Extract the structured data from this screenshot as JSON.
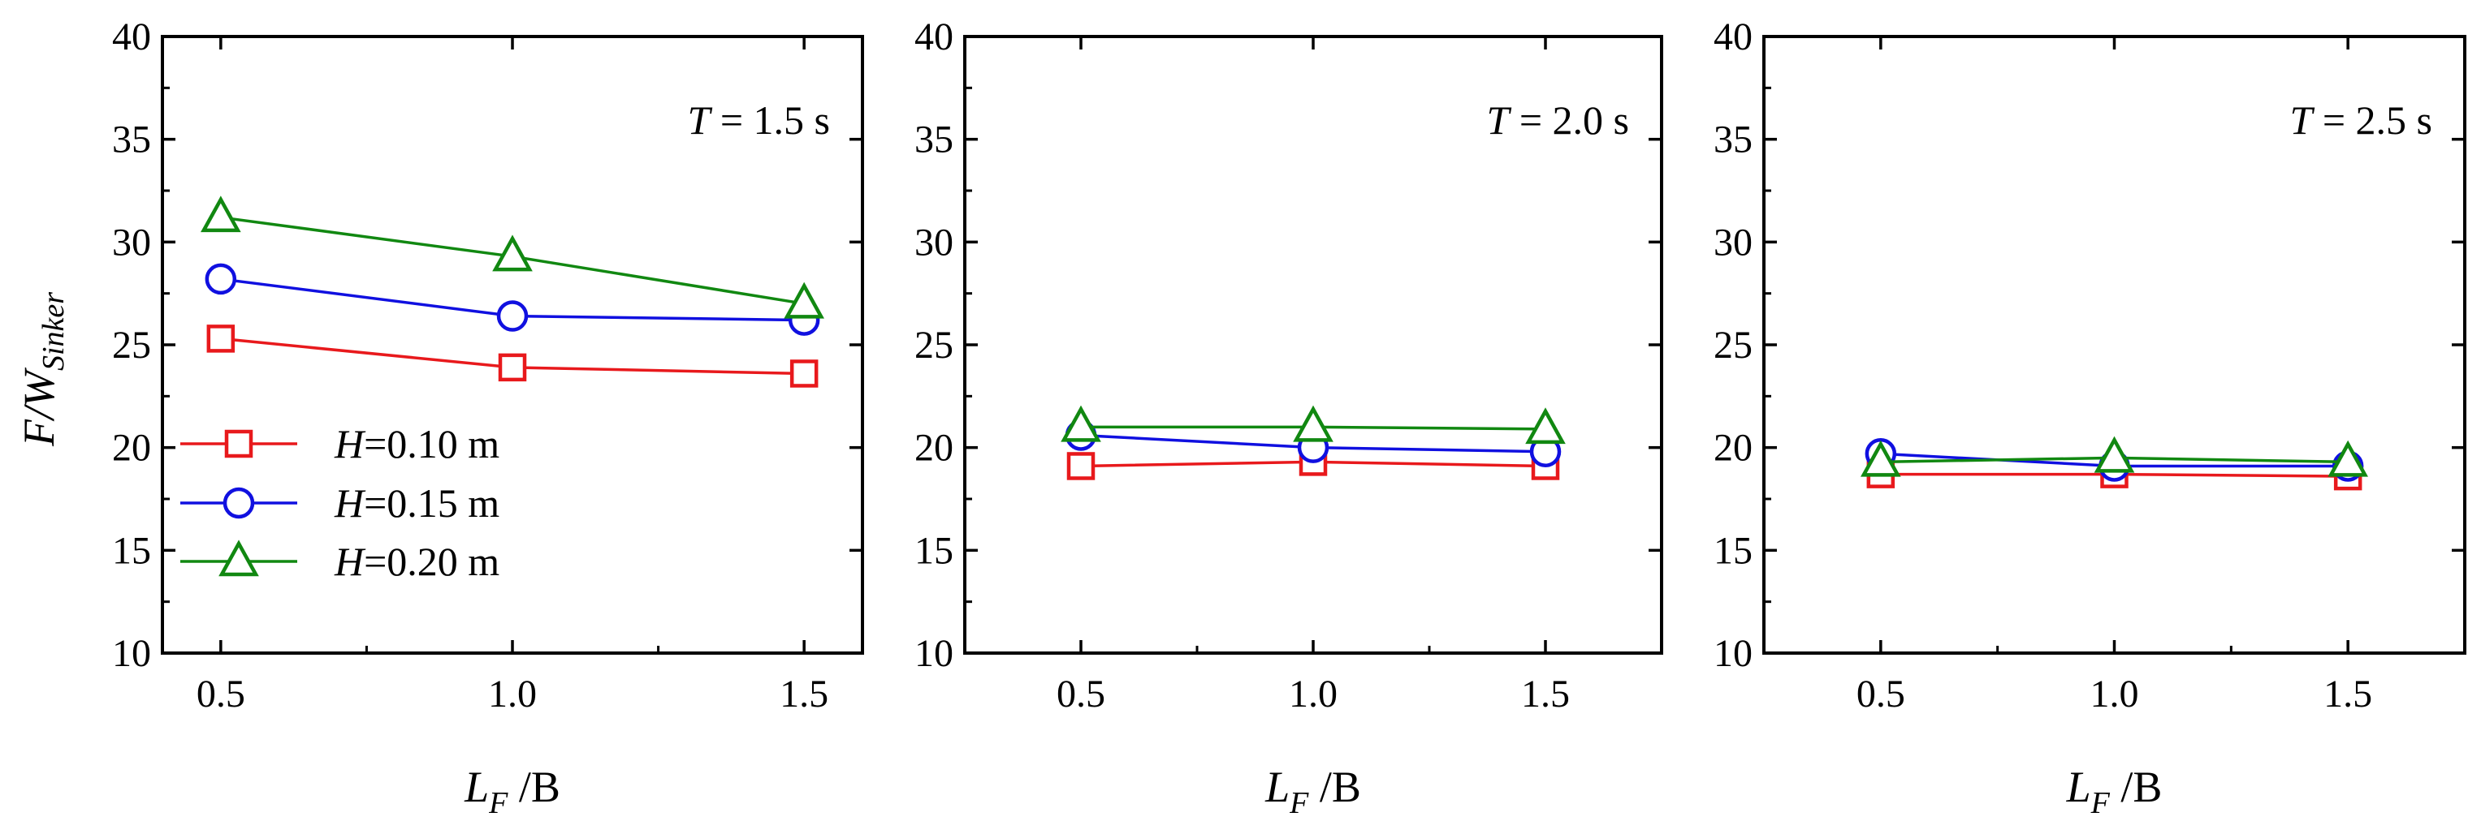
{
  "figure": {
    "ylabel_main": "F/W",
    "ylabel_sub": "Sinker",
    "xlabel_main": "L",
    "xlabel_sub": "F",
    "xlabel_suffix": " /B"
  },
  "chart_data": [
    {
      "type": "line",
      "panel_label": {
        "var": "T",
        "value": " = 1.5 s"
      },
      "x": [
        0.5,
        1.0,
        1.5
      ],
      "xticks": [
        "0.5",
        "1.0",
        "1.5"
      ],
      "xlim": [
        0.4,
        1.6
      ],
      "ylim": [
        10,
        40
      ],
      "yticks": [
        "10",
        "15",
        "20",
        "25",
        "30",
        "35",
        "40"
      ],
      "legend": "left-center",
      "series": [
        {
          "name": "H=0.10 m",
          "var": "H",
          "value": "=0.10 m",
          "color": "#e8191c",
          "marker": "square",
          "values": [
            25.3,
            23.9,
            23.6
          ]
        },
        {
          "name": "H=0.15 m",
          "var": "H",
          "value": "=0.15 m",
          "color": "#1010e0",
          "marker": "circle",
          "values": [
            28.2,
            26.4,
            26.2
          ]
        },
        {
          "name": "H=0.20 m",
          "var": "H",
          "value": "=0.20 m",
          "color": "#118811",
          "marker": "triangle",
          "values": [
            31.2,
            29.3,
            27.0
          ]
        }
      ]
    },
    {
      "type": "line",
      "panel_label": {
        "var": "T",
        "value": " = 2.0 s"
      },
      "x": [
        0.5,
        1.0,
        1.5
      ],
      "xticks": [
        "0.5",
        "1.0",
        "1.5"
      ],
      "xlim": [
        0.25,
        1.75
      ],
      "ylim": [
        10,
        40
      ],
      "yticks": [
        "10",
        "15",
        "20",
        "25",
        "30",
        "35",
        "40"
      ],
      "series": [
        {
          "name": "H=0.10 m",
          "color": "#e8191c",
          "marker": "square",
          "values": [
            19.1,
            19.3,
            19.1
          ]
        },
        {
          "name": "H=0.15 m",
          "color": "#1010e0",
          "marker": "circle",
          "values": [
            20.6,
            20.0,
            19.8
          ]
        },
        {
          "name": "H=0.20 m",
          "color": "#118811",
          "marker": "triangle",
          "values": [
            21.0,
            21.0,
            20.9
          ]
        }
      ]
    },
    {
      "type": "line",
      "panel_label": {
        "var": "T",
        "value": " = 2.5 s"
      },
      "x": [
        0.5,
        1.0,
        1.5
      ],
      "xticks": [
        "0.5",
        "1.0",
        "1.5"
      ],
      "xlim": [
        0.25,
        1.75
      ],
      "ylim": [
        10,
        40
      ],
      "yticks": [
        "10",
        "15",
        "20",
        "25",
        "30",
        "35",
        "40"
      ],
      "series": [
        {
          "name": "H=0.10 m",
          "color": "#e8191c",
          "marker": "square",
          "values": [
            18.7,
            18.7,
            18.6
          ]
        },
        {
          "name": "H=0.15 m",
          "color": "#1010e0",
          "marker": "circle",
          "values": [
            19.7,
            19.1,
            19.1
          ]
        },
        {
          "name": "H=0.20 m",
          "color": "#118811",
          "marker": "triangle",
          "values": [
            19.3,
            19.5,
            19.3
          ]
        }
      ]
    }
  ]
}
